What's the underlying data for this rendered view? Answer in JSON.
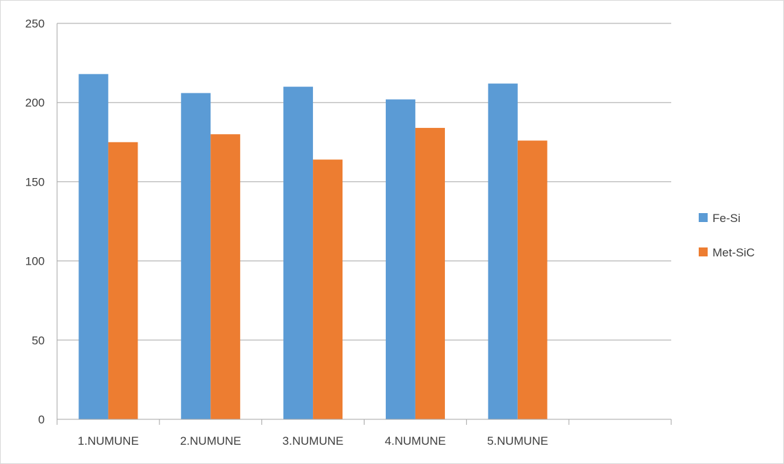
{
  "chart_data": {
    "type": "bar",
    "categories": [
      "1.NUMUNE",
      "2.NUMUNE",
      "3.NUMUNE",
      "4.NUMUNE",
      "5.NUMUNE",
      ""
    ],
    "series": [
      {
        "name": "Fe-Si",
        "color": "#5B9BD5",
        "values": [
          218,
          206,
          210,
          202,
          212,
          null
        ]
      },
      {
        "name": "Met-SiC",
        "color": "#ED7D31",
        "values": [
          175,
          180,
          164,
          184,
          176,
          null
        ]
      }
    ],
    "y_ticks": [
      "0",
      "50",
      "100",
      "150",
      "200",
      "250"
    ],
    "ylim": [
      0,
      250
    ],
    "grid": true,
    "legend_position": "right"
  }
}
